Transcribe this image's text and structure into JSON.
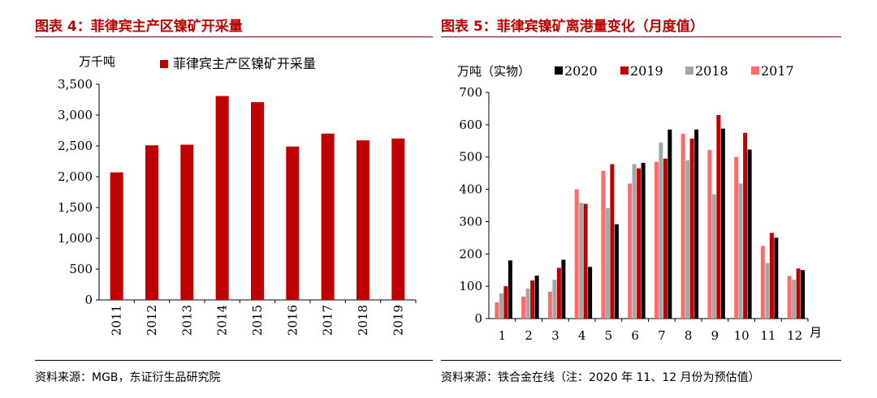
{
  "left": {
    "title": "图表 4：菲律宾主产区镍矿开采量",
    "source": "资料来源：MGB，东证衍生品研究院"
  },
  "right": {
    "title": "图表 5：菲律宾镍矿离港量变化（月度值）",
    "source": "资料来源：铁合金在线（注：2020 年 11、12 月份为预估值）"
  },
  "chart_data": [
    {
      "type": "bar",
      "title": "",
      "ylabel": "万千吨",
      "xlabel": "",
      "ylim": [
        0,
        3500
      ],
      "yticks": [
        "0",
        "500",
        "1,000",
        "1,500",
        "2,000",
        "2,500",
        "3,000",
        "3,500"
      ],
      "categories": [
        "2011",
        "2012",
        "2013",
        "2014",
        "2015",
        "2016",
        "2017",
        "2018",
        "2019"
      ],
      "series": [
        {
          "name": "菲律宾主产区镍矿开采量",
          "color": "#c00000",
          "values": [
            2070,
            2510,
            2520,
            3310,
            3210,
            2490,
            2700,
            2590,
            2620
          ]
        }
      ],
      "legend": "top"
    },
    {
      "type": "bar",
      "title": "",
      "ylabel": "万吨（实物）",
      "xlabel": "月",
      "ylim": [
        0,
        700
      ],
      "yticks": [
        "0",
        "100",
        "200",
        "300",
        "400",
        "500",
        "600",
        "700"
      ],
      "categories": [
        "1",
        "2",
        "3",
        "4",
        "5",
        "6",
        "7",
        "8",
        "9",
        "10",
        "11",
        "12"
      ],
      "series": [
        {
          "name": "2017",
          "color": "#ff6b6b",
          "values": [
            50,
            68,
            83,
            400,
            457,
            418,
            485,
            572,
            522,
            500,
            225,
            132
          ]
        },
        {
          "name": "2018",
          "color": "#a6a6a6",
          "values": [
            78,
            93,
            120,
            358,
            342,
            478,
            545,
            490,
            385,
            418,
            172,
            120
          ]
        },
        {
          "name": "2019",
          "color": "#c00000",
          "values": [
            100,
            118,
            157,
            355,
            478,
            465,
            495,
            557,
            630,
            575,
            265,
            155
          ]
        },
        {
          "name": "2020",
          "color": "#000000",
          "values": [
            180,
            133,
            182,
            160,
            292,
            482,
            585,
            585,
            588,
            523,
            250,
            150
          ]
        }
      ],
      "legend_order": [
        "2020",
        "2019",
        "2018",
        "2017"
      ],
      "legend": "top"
    }
  ]
}
